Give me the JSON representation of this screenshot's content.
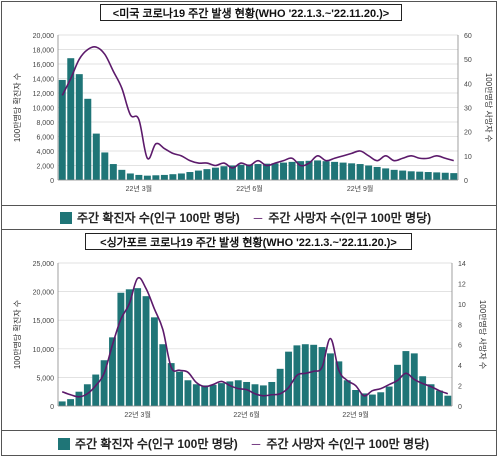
{
  "colors": {
    "bar": "#1f7577",
    "line": "#5c1a6b",
    "axis": "#888888",
    "grid": "#d8d8d8"
  },
  "chart_data": [
    {
      "type": "bar",
      "title": "<미국 코로나19 주간 발생 현황(WHO '22.1.3.~'22.11.20.)>",
      "ylabel": "100만명당 확진자 수",
      "y2label": "100만명당 사망자 수",
      "ylim": [
        0,
        20000
      ],
      "y2lim": [
        0,
        60
      ],
      "yticks": [
        "0",
        "2,000",
        "4,000",
        "6,000",
        "8,000",
        "10,000",
        "12,000",
        "14,000",
        "16,000",
        "18,000",
        "20,000"
      ],
      "y2ticks": [
        "0",
        "10",
        "20",
        "30",
        "40",
        "50",
        "60"
      ],
      "xticks": [
        {
          "index": 9,
          "label": "22년 3월"
        },
        {
          "index": 22,
          "label": "22년 6월"
        },
        {
          "index": 35,
          "label": "22년 9월"
        }
      ],
      "legend": {
        "bar": "주간 확진자 수(인구 100만 명당)",
        "line": "주간 사망자 수(인구 100만 명당)",
        "dash": "─"
      },
      "series": [
        {
          "name": "주간 확진자 수(인구 100만 명당)",
          "kind": "bar",
          "values": [
            13800,
            16800,
            14600,
            11200,
            6400,
            3800,
            2200,
            1400,
            900,
            700,
            600,
            650,
            700,
            800,
            900,
            1100,
            1300,
            1500,
            1700,
            1900,
            2000,
            2100,
            2150,
            2200,
            2250,
            2300,
            2400,
            2500,
            2600,
            2650,
            2700,
            2600,
            2500,
            2400,
            2300,
            2200,
            2000,
            1800,
            1600,
            1400,
            1300,
            1200,
            1150,
            1100,
            1050,
            1000,
            950
          ]
        },
        {
          "name": "주간 사망자 수(인구 100만 명당)",
          "kind": "line",
          "axis": "right",
          "values": [
            35,
            42,
            50,
            54,
            55,
            52,
            45,
            38,
            27,
            25,
            9,
            15,
            13,
            11,
            10,
            8,
            7,
            7,
            6,
            7,
            5,
            7,
            6,
            8,
            6,
            7,
            8,
            9,
            6,
            7,
            10,
            8,
            9,
            10,
            11,
            12,
            10,
            8,
            10,
            8,
            9,
            10,
            9,
            9,
            10,
            9,
            8
          ]
        }
      ]
    },
    {
      "type": "bar",
      "title": "<싱가포르 코로나19 주간 발생 현황(WHO '22.1.3.~'22.11.20.)>",
      "ylabel": "100만명당 확진자 수",
      "y2label": "100만명당 사망자 수",
      "ylim": [
        0,
        25000
      ],
      "y2lim": [
        0,
        14
      ],
      "yticks": [
        "0",
        "5,000",
        "10,000",
        "15,000",
        "20,000",
        "25,000"
      ],
      "y2ticks": [
        "0",
        "2",
        "4",
        "6",
        "8",
        "10",
        "12",
        "14"
      ],
      "xticks": [
        {
          "index": 9,
          "label": "22년 3월"
        },
        {
          "index": 22,
          "label": "22년 6월"
        },
        {
          "index": 35,
          "label": "22년 9월"
        }
      ],
      "legend": {
        "bar": "주간 확진자 수(인구 100만 명당)",
        "line": "주간 사망자 수(인구 100만 명당)",
        "dash": "─"
      },
      "series": [
        {
          "name": "주간 확진자 수(인구 100만 명당)",
          "kind": "bar",
          "values": [
            800,
            1200,
            2500,
            3800,
            5500,
            8000,
            12000,
            19800,
            20400,
            20600,
            19200,
            15500,
            10800,
            7500,
            6000,
            4500,
            3800,
            3600,
            3700,
            4000,
            4300,
            4500,
            4200,
            3800,
            3600,
            4200,
            6500,
            9500,
            10600,
            10800,
            10700,
            10300,
            9200,
            7800,
            4500,
            2800,
            2200,
            2000,
            2400,
            3400,
            7200,
            9600,
            9200,
            5200,
            3800,
            2700,
            1800
          ]
        },
        {
          "name": "주간 사망자 수(인구 100만 명당)",
          "kind": "line",
          "axis": "right",
          "values": [
            1.4,
            1.1,
            0.9,
            1.2,
            2.0,
            3.2,
            6.0,
            8.5,
            10.0,
            12.5,
            11.5,
            9.5,
            7.5,
            3.8,
            3.5,
            3.3,
            2.3,
            1.9,
            2.1,
            2.4,
            2.0,
            1.7,
            1.6,
            1.2,
            1.0,
            1.1,
            1.2,
            1.8,
            3.0,
            3.2,
            3.4,
            3.8,
            6.6,
            3.5,
            2.5,
            2.0,
            1.0,
            1.5,
            1.7,
            2.1,
            2.5,
            3.2,
            2.6,
            2.2,
            1.9,
            1.5,
            1.2
          ]
        }
      ]
    }
  ]
}
